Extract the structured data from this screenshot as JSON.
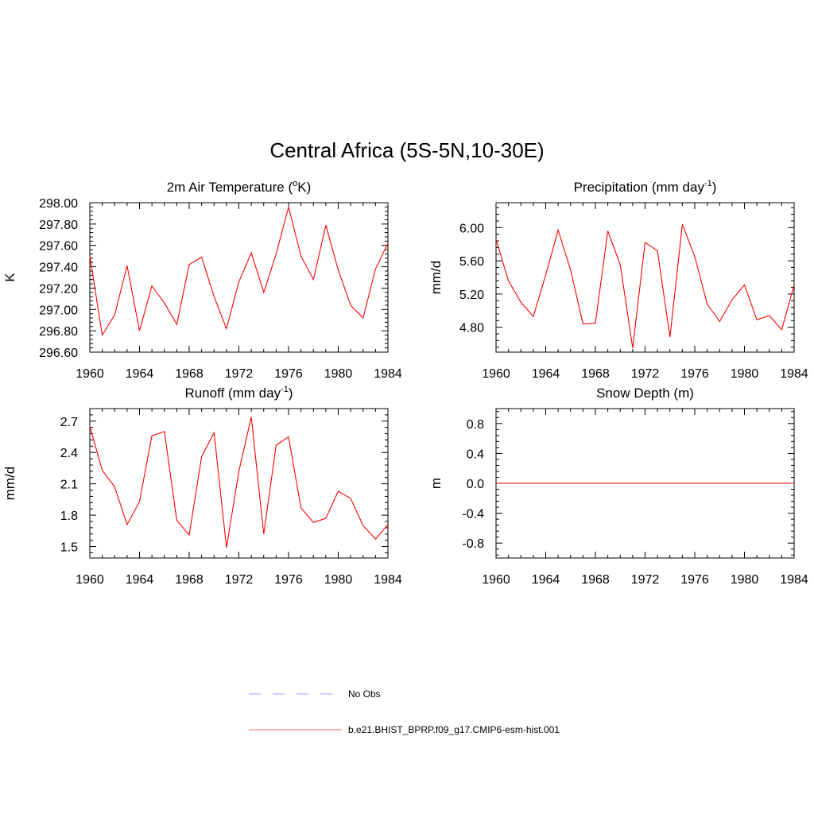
{
  "title": "Central Africa (5S-5N,10-30E)",
  "legend": [
    {
      "label": "No Obs",
      "color": "#9999ff",
      "dash": true
    },
    {
      "label": "b.e21.BHIST_BPRP.f09_g17.CMIP6-esm-hist.001",
      "color": "#ff6a6a",
      "dash": false
    }
  ],
  "chart_data": [
    {
      "type": "line",
      "title": "2m Air Temperature (°K)",
      "ylabel": "K",
      "xlim": [
        1960,
        1984
      ],
      "ylim": [
        296.6,
        298.0
      ],
      "xticks": [
        1960,
        1964,
        1968,
        1972,
        1976,
        1980,
        1984
      ],
      "yticks": [
        296.6,
        296.8,
        297.0,
        297.2,
        297.4,
        297.6,
        297.8,
        298.0
      ],
      "ytick_labels": [
        "296.60",
        "296.80",
        "297.00",
        "297.20",
        "297.40",
        "297.60",
        "297.80",
        "298.00"
      ],
      "series": [
        {
          "color": "#ff0000",
          "x": [
            1960,
            1961,
            1962,
            1963,
            1964,
            1965,
            1966,
            1967,
            1968,
            1969,
            1970,
            1971,
            1972,
            1973,
            1974,
            1975,
            1976,
            1977,
            1978,
            1979,
            1980,
            1981,
            1982,
            1983,
            1984
          ],
          "values": [
            297.5,
            296.76,
            296.95,
            297.41,
            296.8,
            297.22,
            297.06,
            296.86,
            297.42,
            297.49,
            297.12,
            296.82,
            297.26,
            297.53,
            297.16,
            297.52,
            297.96,
            297.5,
            297.28,
            297.79,
            297.37,
            297.04,
            296.92,
            297.38,
            297.62
          ]
        }
      ]
    },
    {
      "type": "line",
      "title": "Precipitation (mm day-1)",
      "ylabel": "mm/d",
      "xlim": [
        1960,
        1984
      ],
      "ylim": [
        4.5,
        6.3
      ],
      "xticks": [
        1960,
        1964,
        1968,
        1972,
        1976,
        1980,
        1984
      ],
      "yticks": [
        4.8,
        5.2,
        5.6,
        6.0
      ],
      "ytick_labels": [
        "4.80",
        "5.20",
        "5.60",
        "6.00"
      ],
      "series": [
        {
          "color": "#ff0000",
          "x": [
            1960,
            1961,
            1962,
            1963,
            1964,
            1965,
            1966,
            1967,
            1968,
            1969,
            1970,
            1971,
            1972,
            1973,
            1974,
            1975,
            1976,
            1977,
            1978,
            1979,
            1980,
            1981,
            1982,
            1983,
            1984
          ],
          "values": [
            5.86,
            5.36,
            5.1,
            4.93,
            5.43,
            5.97,
            5.49,
            4.84,
            4.85,
            5.96,
            5.55,
            4.55,
            5.82,
            5.72,
            4.68,
            6.04,
            5.65,
            5.08,
            4.87,
            5.13,
            5.31,
            4.89,
            4.94,
            4.77,
            5.31
          ]
        }
      ]
    },
    {
      "type": "line",
      "title": "Runoff (mm day-1)",
      "ylabel": "mm/d",
      "xlim": [
        1960,
        1984
      ],
      "ylim": [
        1.39,
        2.82
      ],
      "xticks": [
        1960,
        1964,
        1968,
        1972,
        1976,
        1980,
        1984
      ],
      "yticks": [
        1.5,
        1.8,
        2.1,
        2.4,
        2.7
      ],
      "ytick_labels": [
        "1.5",
        "1.8",
        "2.1",
        "2.4",
        "2.7"
      ],
      "series": [
        {
          "color": "#ff0000",
          "x": [
            1960,
            1961,
            1962,
            1963,
            1964,
            1965,
            1966,
            1967,
            1968,
            1969,
            1970,
            1971,
            1972,
            1973,
            1974,
            1975,
            1976,
            1977,
            1978,
            1979,
            1980,
            1981,
            1982,
            1983,
            1984
          ],
          "values": [
            2.65,
            2.23,
            2.07,
            1.71,
            1.93,
            2.56,
            2.6,
            1.75,
            1.61,
            2.36,
            2.59,
            1.49,
            2.22,
            2.74,
            1.62,
            2.47,
            2.55,
            1.87,
            1.73,
            1.77,
            2.03,
            1.96,
            1.7,
            1.57,
            1.71
          ]
        }
      ]
    },
    {
      "type": "line",
      "title": "Snow Depth (m)",
      "ylabel": "m",
      "xlim": [
        1960,
        1984
      ],
      "ylim": [
        -1.0,
        1.0
      ],
      "xticks": [
        1960,
        1964,
        1968,
        1972,
        1976,
        1980,
        1984
      ],
      "yticks": [
        -0.8,
        -0.4,
        0.0,
        0.4,
        0.8
      ],
      "ytick_labels": [
        "-0.8",
        "-0.4",
        "0.0",
        "0.4",
        "0.8"
      ],
      "series": [
        {
          "color": "#ff0000",
          "x": [
            1960,
            1984
          ],
          "values": [
            0.0,
            0.0
          ]
        }
      ]
    }
  ]
}
